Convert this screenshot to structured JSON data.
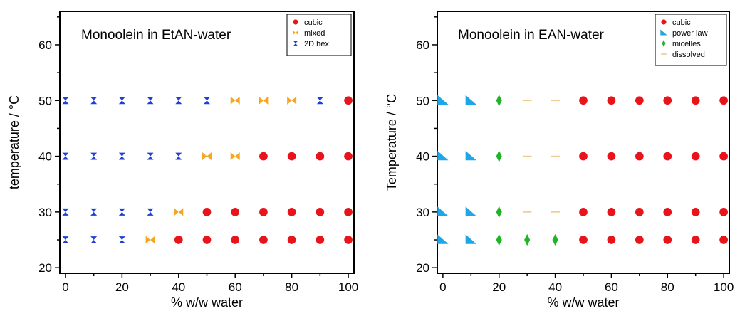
{
  "chart_data": [
    {
      "type": "scatter",
      "title": "Monoolein in EtAN-water",
      "xlabel": "% w/w water",
      "ylabel": "temperature / °C",
      "xlim": [
        -2,
        102
      ],
      "ylim": [
        19,
        66
      ],
      "xticks": [
        "0",
        "20",
        "40",
        "60",
        "80",
        "100"
      ],
      "xtick_values": [
        0,
        20,
        40,
        60,
        80,
        100
      ],
      "yticks": [
        "20",
        "30",
        "40",
        "50",
        "60"
      ],
      "ytick_values": [
        20,
        30,
        40,
        50,
        60
      ],
      "grid": false,
      "legend_position": "top-right",
      "series": [
        {
          "name": "cubic",
          "marker": "circle",
          "color": "#e8141b",
          "points": [
            [
              100,
              50
            ],
            [
              70,
              40
            ],
            [
              80,
              40
            ],
            [
              90,
              40
            ],
            [
              100,
              40
            ],
            [
              50,
              30
            ],
            [
              60,
              30
            ],
            [
              70,
              30
            ],
            [
              80,
              30
            ],
            [
              90,
              30
            ],
            [
              100,
              30
            ],
            [
              40,
              25
            ],
            [
              50,
              25
            ],
            [
              60,
              25
            ],
            [
              70,
              25
            ],
            [
              80,
              25
            ],
            [
              90,
              25
            ],
            [
              100,
              25
            ]
          ]
        },
        {
          "name": "mixed",
          "marker": "bowtie",
          "color": "#f5a623",
          "points": [
            [
              60,
              50
            ],
            [
              70,
              50
            ],
            [
              80,
              50
            ],
            [
              50,
              40
            ],
            [
              60,
              40
            ],
            [
              40,
              30
            ],
            [
              30,
              25
            ]
          ]
        },
        {
          "name": "2D hex",
          "marker": "hourglass",
          "color": "#1f3fd6",
          "points": [
            [
              0,
              50
            ],
            [
              10,
              50
            ],
            [
              20,
              50
            ],
            [
              30,
              50
            ],
            [
              40,
              50
            ],
            [
              50,
              50
            ],
            [
              90,
              50
            ],
            [
              0,
              40
            ],
            [
              10,
              40
            ],
            [
              20,
              40
            ],
            [
              30,
              40
            ],
            [
              40,
              40
            ],
            [
              0,
              30
            ],
            [
              10,
              30
            ],
            [
              20,
              30
            ],
            [
              30,
              30
            ],
            [
              0,
              25
            ],
            [
              10,
              25
            ],
            [
              20,
              25
            ]
          ]
        }
      ]
    },
    {
      "type": "scatter",
      "title": "Monoolein in EAN-water",
      "xlabel": "% w/w water",
      "ylabel": "Temperature / °C",
      "xlim": [
        -2,
        102
      ],
      "ylim": [
        19,
        66
      ],
      "xticks": [
        "0",
        "20",
        "40",
        "60",
        "80",
        "100"
      ],
      "xtick_values": [
        0,
        20,
        40,
        60,
        80,
        100
      ],
      "yticks": [
        "20",
        "30",
        "40",
        "50",
        "60"
      ],
      "ytick_values": [
        20,
        30,
        40,
        50,
        60
      ],
      "grid": false,
      "legend_position": "top-right",
      "series": [
        {
          "name": "cubic",
          "marker": "circle",
          "color": "#e8141b",
          "points": [
            [
              50,
              50
            ],
            [
              60,
              50
            ],
            [
              70,
              50
            ],
            [
              80,
              50
            ],
            [
              90,
              50
            ],
            [
              100,
              50
            ],
            [
              50,
              40
            ],
            [
              60,
              40
            ],
            [
              70,
              40
            ],
            [
              80,
              40
            ],
            [
              90,
              40
            ],
            [
              100,
              40
            ],
            [
              50,
              30
            ],
            [
              60,
              30
            ],
            [
              70,
              30
            ],
            [
              80,
              30
            ],
            [
              90,
              30
            ],
            [
              100,
              30
            ],
            [
              50,
              25
            ],
            [
              60,
              25
            ],
            [
              70,
              25
            ],
            [
              80,
              25
            ],
            [
              90,
              25
            ],
            [
              100,
              25
            ]
          ]
        },
        {
          "name": "power law",
          "marker": "triangle",
          "color": "#1ea7e8",
          "points": [
            [
              0,
              50
            ],
            [
              10,
              50
            ],
            [
              0,
              40
            ],
            [
              10,
              40
            ],
            [
              0,
              30
            ],
            [
              10,
              30
            ],
            [
              0,
              25
            ],
            [
              10,
              25
            ]
          ]
        },
        {
          "name": "micelles",
          "marker": "diamond",
          "color": "#1fb526",
          "points": [
            [
              20,
              50
            ],
            [
              20,
              40
            ],
            [
              20,
              30
            ],
            [
              20,
              25
            ],
            [
              30,
              25
            ],
            [
              40,
              25
            ]
          ]
        },
        {
          "name": "dissolved",
          "marker": "dash",
          "color": "#f0c890",
          "points": [
            [
              30,
              50
            ],
            [
              40,
              50
            ],
            [
              30,
              40
            ],
            [
              40,
              40
            ],
            [
              30,
              30
            ],
            [
              40,
              30
            ]
          ]
        }
      ]
    }
  ]
}
